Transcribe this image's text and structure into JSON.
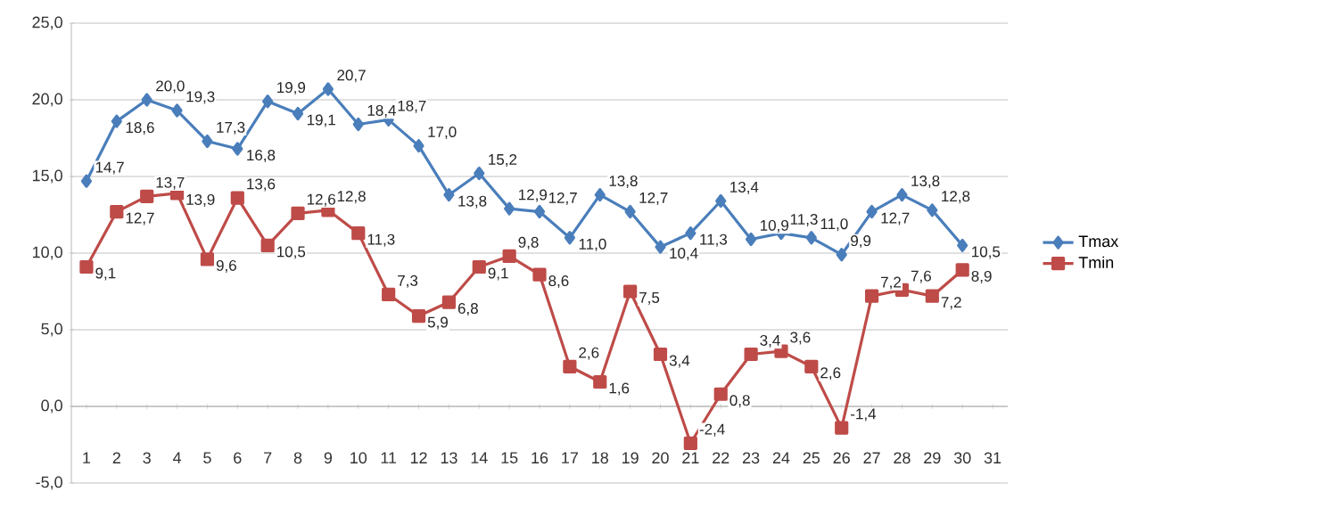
{
  "chart_data": {
    "type": "line",
    "categories": [
      "1",
      "2",
      "3",
      "4",
      "5",
      "6",
      "7",
      "8",
      "9",
      "10",
      "11",
      "12",
      "13",
      "14",
      "15",
      "16",
      "17",
      "18",
      "19",
      "20",
      "21",
      "22",
      "23",
      "24",
      "25",
      "26",
      "27",
      "28",
      "29",
      "30",
      "31"
    ],
    "series": [
      {
        "name": "Tmax",
        "color": "#4a7ebb",
        "marker": "diamond",
        "values": [
          14.7,
          18.6,
          20.0,
          19.3,
          17.3,
          16.8,
          19.9,
          19.1,
          20.7,
          18.4,
          18.7,
          17.0,
          13.8,
          15.2,
          12.9,
          12.7,
          11.0,
          13.8,
          12.7,
          10.4,
          11.3,
          13.4,
          10.9,
          11.3,
          11.0,
          9.9,
          12.7,
          13.8,
          12.8,
          10.5,
          null
        ],
        "value_labels": [
          "14,7",
          "18,6",
          "20,0",
          "19,3",
          "17,3",
          "16,8",
          "19,9",
          "19,1",
          "20,7",
          "18,4",
          "18,7",
          "17,0",
          "13,8",
          "15,2",
          "12,9",
          "12,7",
          "11,0",
          "13,8",
          "12,7",
          "10,4",
          "11,3",
          "13,4",
          "10,9",
          "11,3",
          "11,0",
          "9,9",
          "12,7",
          "13,8",
          "12,8",
          "10,5",
          null
        ]
      },
      {
        "name": "Tmin",
        "color": "#be4b48",
        "marker": "square",
        "values": [
          9.1,
          12.7,
          13.7,
          13.9,
          9.6,
          13.6,
          10.5,
          12.6,
          12.8,
          11.3,
          7.3,
          5.9,
          6.8,
          9.1,
          9.8,
          8.6,
          2.6,
          1.6,
          7.5,
          3.4,
          -2.4,
          0.8,
          3.4,
          3.6,
          2.6,
          -1.4,
          7.2,
          7.6,
          7.2,
          8.9,
          null
        ],
        "value_labels": [
          "9,1",
          "12,7",
          "13,7",
          "13,9",
          "9,6",
          "13,6",
          "10,5",
          "12,6",
          "12,8",
          "11,3",
          "7,3",
          "5,9",
          "6,8",
          "9,1",
          "9,8",
          "8,6",
          "2,6",
          "1,6",
          "7,5",
          "3,4",
          "-2,4",
          "0,8",
          "3,4",
          "3,6",
          "2,6",
          "-1,4",
          "7,2",
          "7,6",
          "7,2",
          "8,9",
          null
        ]
      }
    ],
    "ylim": [
      -5,
      25
    ],
    "yticks": [
      {
        "value": -5,
        "label": "-5,0"
      },
      {
        "value": 0,
        "label": "0,0"
      },
      {
        "value": 5,
        "label": "5,0"
      },
      {
        "value": 10,
        "label": "10,0"
      },
      {
        "value": 15,
        "label": "15,0"
      },
      {
        "value": 20,
        "label": "20,0"
      },
      {
        "value": 25,
        "label": "25,0"
      }
    ],
    "grid": "y",
    "legend": "right",
    "line_style": "solid"
  }
}
